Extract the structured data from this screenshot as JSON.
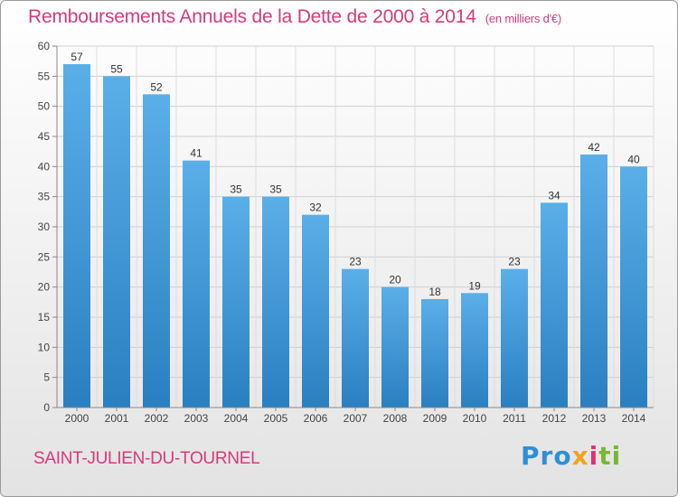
{
  "title": "Remboursements Annuels de la Dette de 2000 à 2014",
  "unit": "(en milliers d'€)",
  "city": "SAINT-JULIEN-DU-TOURNEL",
  "logo": {
    "p1": "Pro",
    "p2": "x",
    "p3": "i",
    "p4": "ti"
  },
  "colors": {
    "title": "#d63a7c",
    "bar_top": "#5aafe8",
    "bar_bottom": "#2a7fc1"
  },
  "chart_data": {
    "type": "bar",
    "categories": [
      "2000",
      "2001",
      "2002",
      "2003",
      "2004",
      "2005",
      "2006",
      "2007",
      "2008",
      "2009",
      "2010",
      "2011",
      "2012",
      "2013",
      "2014"
    ],
    "values": [
      57,
      55,
      52,
      41,
      35,
      35,
      32,
      23,
      20,
      18,
      19,
      23,
      34,
      42,
      40
    ],
    "ylim": [
      0,
      60
    ],
    "yticks": [
      0,
      5,
      10,
      15,
      20,
      25,
      30,
      35,
      40,
      45,
      50,
      55,
      60
    ],
    "grid": true,
    "show_value_labels": true
  }
}
